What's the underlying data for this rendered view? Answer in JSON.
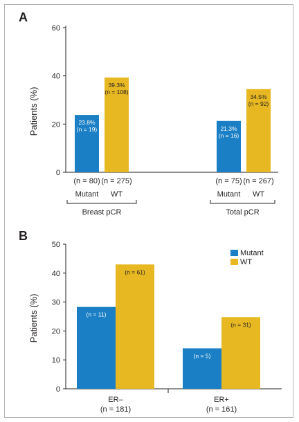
{
  "colors": {
    "mutant": "#1a7fc4",
    "wt": "#e8b823",
    "axis": "#231f20"
  },
  "chart_data": [
    {
      "panel": "A",
      "type": "bar",
      "ylabel": "Patients (%)",
      "ylim": [
        0,
        60
      ],
      "yticks": [
        0,
        20,
        40,
        60
      ],
      "groups": [
        {
          "name": "Breast pCR",
          "bars": [
            {
              "series": "Mutant",
              "value": 23.8,
              "pct_label": "23.8%",
              "n_label": "(n = 19)",
              "total_label": "(n = 80)"
            },
            {
              "series": "WT",
              "value": 39.3,
              "pct_label": "39.3%",
              "n_label": "(n = 108)",
              "total_label": "(n = 275)"
            }
          ]
        },
        {
          "name": "Total pCR",
          "bars": [
            {
              "series": "Mutant",
              "value": 21.3,
              "pct_label": "21.3%",
              "n_label": "(n = 16)",
              "total_label": "(n = 75)"
            },
            {
              "series": "WT",
              "value": 34.5,
              "pct_label": "34.5%",
              "n_label": "(n = 92)",
              "total_label": "(n = 267)"
            }
          ]
        }
      ]
    },
    {
      "panel": "B",
      "type": "bar",
      "ylabel": "Patients (%)",
      "ylim": [
        0,
        50
      ],
      "yticks": [
        0,
        10,
        20,
        30,
        40,
        50
      ],
      "legend": [
        "Mutant",
        "WT"
      ],
      "legend_position": "top-right",
      "groups": [
        {
          "name": "ER–",
          "n_label": "(n = 181)",
          "bars": [
            {
              "series": "Mutant",
              "value": 28.3,
              "n_label": "(n = 11)"
            },
            {
              "series": "WT",
              "value": 43.0,
              "n_label": "(n = 61)"
            }
          ]
        },
        {
          "name": "ER+",
          "n_label": "(n = 161)",
          "bars": [
            {
              "series": "Mutant",
              "value": 14.0,
              "n_label": "(n = 5)"
            },
            {
              "series": "WT",
              "value": 24.8,
              "n_label": "(n = 31)"
            }
          ]
        }
      ]
    }
  ]
}
